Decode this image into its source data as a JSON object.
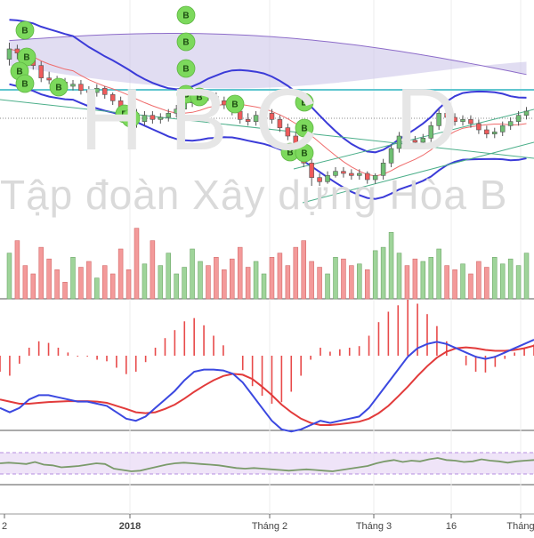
{
  "watermark": {
    "ticker": "HBC D",
    "company": "Tập đoàn Xây dựng Hòa B"
  },
  "colors": {
    "up": "#6fbf73",
    "down": "#ef5b5b",
    "up_volume": "#9fd49a",
    "down_volume": "#f39a9a",
    "bb_line": "#3b3bd8",
    "bb_mid": "#ef6c6c",
    "ichimoku_fill": "#c9c1e8",
    "ichimoku_line": "#8d6cc9",
    "resistance": "#5fc6cf",
    "trend": "#4caf8a",
    "macd_line": "#3b48e0",
    "signal_line": "#e23b3b",
    "rsi_line": "#7a9a6a",
    "rsi_band": "#e8d9f5",
    "badge": "#7cd95c"
  },
  "chart_data": {
    "type": "candlestick",
    "x_ticks": [
      "2",
      "2018",
      "Tháng 2",
      "Tháng 3",
      "16",
      "Tháng"
    ],
    "price": {
      "close": [
        40,
        39.8,
        39.5,
        39.2,
        38.6,
        38.5,
        38.4,
        38.2,
        38.3,
        38.0,
        37.9,
        38.1,
        37.8,
        37.5,
        37.2,
        36.9,
        36.5,
        36.8,
        36.6,
        36.7,
        36.9,
        37.1,
        37.4,
        37.6,
        37.8,
        37.7,
        37.5,
        37.3,
        37.0,
        36.6,
        36.5,
        36.8,
        36.9,
        36.6,
        36.2,
        35.8,
        35.2,
        34.5,
        33.8,
        33.6,
        33.9,
        34.1,
        34.0,
        33.9,
        34.0,
        33.7,
        33.9,
        34.5,
        35.2,
        35.8,
        35.6,
        35.5,
        35.7,
        36.3,
        36.9,
        36.7,
        36.5,
        36.6,
        36.4,
        36.1,
        35.9,
        36.0,
        36.3,
        36.5,
        36.8,
        37.0
      ],
      "open": [
        39.5,
        40,
        39.8,
        39.5,
        39.2,
        38.6,
        38.5,
        38.4,
        38.2,
        38.3,
        38.0,
        37.9,
        38.1,
        37.8,
        37.5,
        37.2,
        36.9,
        36.5,
        36.8,
        36.6,
        36.7,
        36.9,
        37.1,
        37.4,
        37.6,
        37.8,
        37.7,
        37.5,
        37.3,
        37.0,
        36.6,
        36.5,
        36.8,
        36.9,
        36.6,
        36.2,
        35.8,
        35.2,
        34.5,
        33.8,
        33.6,
        33.9,
        34.1,
        34.0,
        33.9,
        34.0,
        33.7,
        33.9,
        34.5,
        35.2,
        35.8,
        35.6,
        35.5,
        35.7,
        36.3,
        36.9,
        36.7,
        36.5,
        36.6,
        36.4,
        36.1,
        35.9,
        36.0,
        36.3,
        36.5,
        36.8
      ],
      "high": [
        40.3,
        40.2,
        40.0,
        39.7,
        39.4,
        38.9,
        38.7,
        38.6,
        38.5,
        38.5,
        38.2,
        38.3,
        38.2,
        37.9,
        37.7,
        37.4,
        37.1,
        37.0,
        37.0,
        36.9,
        37.1,
        37.3,
        37.6,
        37.8,
        38.0,
        38.0,
        37.9,
        37.7,
        37.4,
        37.2,
        36.9,
        37.0,
        37.1,
        37.1,
        36.8,
        36.4,
        36.0,
        35.4,
        34.7,
        34.0,
        34.1,
        34.3,
        34.3,
        34.2,
        34.2,
        34.1,
        34.0,
        34.7,
        35.4,
        36.0,
        36.0,
        35.8,
        35.9,
        36.5,
        37.1,
        37.1,
        36.9,
        36.8,
        36.8,
        36.6,
        36.3,
        36.2,
        36.5,
        36.7,
        37.0,
        37.2
      ],
      "low": [
        39.2,
        39.5,
        39.3,
        39.0,
        38.4,
        38.3,
        38.2,
        38.0,
        38.0,
        37.8,
        37.7,
        37.7,
        37.6,
        37.3,
        37.0,
        36.7,
        36.2,
        36.3,
        36.4,
        36.4,
        36.5,
        36.7,
        36.9,
        37.2,
        37.4,
        37.5,
        37.3,
        37.1,
        36.8,
        36.4,
        36.3,
        36.3,
        36.6,
        36.4,
        36.0,
        35.6,
        35.0,
        34.3,
        33.4,
        33.4,
        33.5,
        33.8,
        33.8,
        33.7,
        33.7,
        33.5,
        33.5,
        33.7,
        34.3,
        35.0,
        35.4,
        35.3,
        35.3,
        35.5,
        36.1,
        36.5,
        36.3,
        36.3,
        36.2,
        35.9,
        35.7,
        35.7,
        35.8,
        36.1,
        36.3,
        36.6
      ]
    },
    "volume": [
      55,
      70,
      40,
      30,
      62,
      48,
      35,
      20,
      50,
      38,
      45,
      25,
      40,
      30,
      60,
      35,
      85,
      42,
      70,
      40,
      55,
      30,
      38,
      60,
      45,
      40,
      50,
      35,
      48,
      62,
      38,
      45,
      30,
      50,
      55,
      40,
      62,
      70,
      45,
      38,
      30,
      50,
      48,
      40,
      42,
      35,
      58,
      62,
      80,
      55,
      40,
      48,
      45,
      50,
      60,
      40,
      35,
      42,
      30,
      45,
      38,
      50,
      42,
      48,
      40,
      55
    ],
    "macd": {
      "macd": [
        -0.6,
        -0.7,
        -0.6,
        -0.4,
        -0.3,
        -0.3,
        -0.35,
        -0.4,
        -0.45,
        -0.45,
        -0.5,
        -0.55,
        -0.7,
        -0.85,
        -0.9,
        -0.8,
        -0.6,
        -0.4,
        -0.2,
        0.05,
        0.25,
        0.3,
        0.3,
        0.28,
        0.2,
        0.0,
        -0.3,
        -0.6,
        -0.9,
        -1.1,
        -1.15,
        -1.1,
        -1.0,
        -0.9,
        -0.95,
        -0.9,
        -0.85,
        -0.8,
        -0.6,
        -0.3,
        0.0,
        0.3,
        0.6,
        0.8,
        0.9,
        0.95,
        0.9,
        0.8,
        0.7,
        0.6,
        0.55,
        0.6,
        0.7,
        0.8,
        0.9,
        1.0
      ],
      "signal": [
        -0.4,
        -0.45,
        -0.5,
        -0.5,
        -0.48,
        -0.46,
        -0.45,
        -0.44,
        -0.44,
        -0.44,
        -0.45,
        -0.48,
        -0.55,
        -0.62,
        -0.7,
        -0.72,
        -0.7,
        -0.62,
        -0.52,
        -0.38,
        -0.22,
        -0.08,
        0.05,
        0.15,
        0.2,
        0.18,
        0.08,
        -0.1,
        -0.3,
        -0.52,
        -0.7,
        -0.85,
        -0.95,
        -1.0,
        -1.0,
        -0.98,
        -0.95,
        -0.92,
        -0.85,
        -0.72,
        -0.55,
        -0.33,
        -0.1,
        0.15,
        0.38,
        0.58,
        0.72,
        0.8,
        0.82,
        0.8,
        0.76,
        0.74,
        0.74,
        0.76,
        0.8,
        0.86
      ]
    },
    "rsi": [
      52,
      53,
      52,
      51,
      54,
      50,
      49,
      46,
      47,
      48,
      50,
      52,
      51,
      44,
      42,
      40,
      41,
      44,
      47,
      50,
      52,
      53,
      52,
      51,
      50,
      49,
      47,
      45,
      44,
      45,
      44,
      43,
      42,
      41,
      42,
      43,
      42,
      41,
      40,
      42,
      44,
      46,
      48,
      52,
      55,
      57,
      54,
      56,
      55,
      58,
      60,
      57,
      56,
      54,
      55,
      58,
      56,
      55,
      53,
      55,
      56,
      57
    ]
  },
  "badge_label": "B"
}
